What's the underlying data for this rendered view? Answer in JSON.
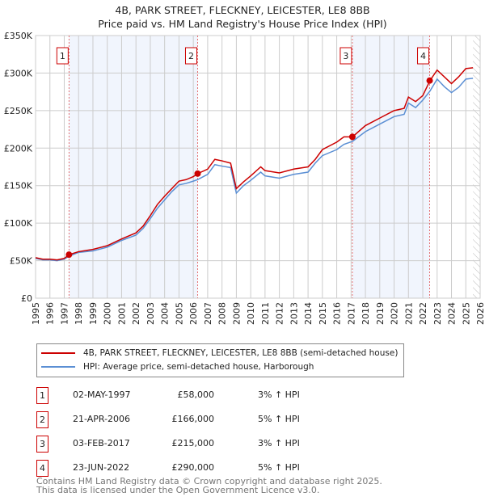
{
  "chart_data": {
    "type": "line",
    "title": "4B, PARK STREET, FLECKNEY, LEICESTER, LE8 8BB",
    "subtitle": "Price paid vs. HM Land Registry's House Price Index (HPI)",
    "xlim": [
      1995,
      2026
    ],
    "ylim": [
      0,
      350000
    ],
    "yticks": [
      {
        "v": 0,
        "label": "£0"
      },
      {
        "v": 50000,
        "label": "£50K"
      },
      {
        "v": 100000,
        "label": "£100K"
      },
      {
        "v": 150000,
        "label": "£150K"
      },
      {
        "v": 200000,
        "label": "£200K"
      },
      {
        "v": 250000,
        "label": "£250K"
      },
      {
        "v": 300000,
        "label": "£300K"
      },
      {
        "v": 350000,
        "label": "£350K"
      }
    ],
    "xticks": [
      "1995",
      "1996",
      "1997",
      "1998",
      "1999",
      "2000",
      "2001",
      "2002",
      "2003",
      "2004",
      "2005",
      "2006",
      "2007",
      "2008",
      "2009",
      "2010",
      "2011",
      "2012",
      "2013",
      "2014",
      "2015",
      "2016",
      "2017",
      "2018",
      "2019",
      "2020",
      "2021",
      "2022",
      "2023",
      "2024",
      "2025",
      "2026"
    ],
    "grid": true,
    "series": [
      {
        "name": "4B, PARK STREET, FLECKNEY, LEICESTER, LE8 8BB (semi-detached house)",
        "color": "#cc0000",
        "x": [
          1995,
          1995.5,
          1996,
          1996.5,
          1997,
          1997.33,
          1998,
          1999,
          2000,
          2001,
          2002,
          2002.5,
          2003,
          2003.5,
          2004,
          2004.5,
          2005,
          2005.5,
          2006,
          2006.3,
          2007,
          2007.5,
          2008,
          2008.6,
          2009,
          2009.5,
          2010,
          2010.7,
          2011,
          2012,
          2013,
          2014,
          2014.5,
          2015,
          2016,
          2016.5,
          2017.1,
          2018,
          2019,
          2020,
          2020.7,
          2021,
          2021.5,
          2022,
          2022.5,
          2023,
          2023.5,
          2024,
          2024.5,
          2025,
          2025.5
        ],
        "y": [
          54000,
          52000,
          52000,
          51000,
          53000,
          58000,
          62000,
          65000,
          70000,
          79000,
          87000,
          96000,
          110000,
          125000,
          136000,
          146000,
          156000,
          158000,
          162000,
          166000,
          172000,
          185000,
          183000,
          180000,
          146000,
          155000,
          163000,
          175000,
          170000,
          167000,
          172000,
          175000,
          185000,
          198000,
          208000,
          215000,
          215000,
          230000,
          240000,
          250000,
          253000,
          268000,
          262000,
          270000,
          290000,
          304000,
          295000,
          286000,
          295000,
          306000,
          307000
        ]
      },
      {
        "name": "HPI: Average price, semi-detached house, Harborough",
        "color": "#5b8fd4",
        "x": [
          1995,
          1995.5,
          1996,
          1996.5,
          1997,
          1997.33,
          1998,
          1999,
          2000,
          2001,
          2002,
          2002.5,
          2003,
          2003.5,
          2004,
          2004.5,
          2005,
          2005.5,
          2006,
          2006.3,
          2007,
          2007.5,
          2008,
          2008.6,
          2009,
          2009.5,
          2010,
          2010.7,
          2011,
          2012,
          2013,
          2014,
          2014.5,
          2015,
          2016,
          2016.5,
          2017.1,
          2018,
          2019,
          2020,
          2020.7,
          2021,
          2021.5,
          2022,
          2022.5,
          2023,
          2023.5,
          2024,
          2024.5,
          2025,
          2025.5
        ],
        "y": [
          53000,
          51000,
          51000,
          50000,
          52000,
          56000,
          61000,
          63000,
          68000,
          77000,
          84000,
          93000,
          106000,
          120000,
          131000,
          142000,
          151000,
          153000,
          156000,
          158000,
          165000,
          178000,
          176000,
          174000,
          140000,
          150000,
          157000,
          168000,
          163000,
          160000,
          165000,
          168000,
          180000,
          190000,
          198000,
          205000,
          209000,
          222000,
          232000,
          242000,
          245000,
          260000,
          254000,
          264000,
          276000,
          292000,
          282000,
          274000,
          281000,
          292000,
          293000
        ]
      }
    ],
    "sales": [
      {
        "n": "1",
        "x": 1997.33,
        "y": 58000,
        "date": "02-MAY-1997",
        "price": "£58,000",
        "hpi": "3% ↑ HPI"
      },
      {
        "n": "2",
        "x": 2006.3,
        "y": 166000,
        "date": "21-APR-2006",
        "price": "£166,000",
        "hpi": "5% ↑ HPI"
      },
      {
        "n": "3",
        "x": 2017.09,
        "y": 215000,
        "date": "03-FEB-2017",
        "price": "£215,000",
        "hpi": "3% ↑ HPI"
      },
      {
        "n": "4",
        "x": 2022.48,
        "y": 290000,
        "date": "23-JUN-2022",
        "price": "£290,000",
        "hpi": "5% ↑ HPI"
      }
    ],
    "shaded_ranges": [
      [
        1997.33,
        2006.3
      ],
      [
        2017.09,
        2022.48
      ]
    ],
    "forecast_from": 2025.5
  },
  "footer": {
    "line1": "Contains HM Land Registry data © Crown copyright and database right 2025.",
    "line2": "This data is licensed under the Open Government Licence v3.0."
  }
}
